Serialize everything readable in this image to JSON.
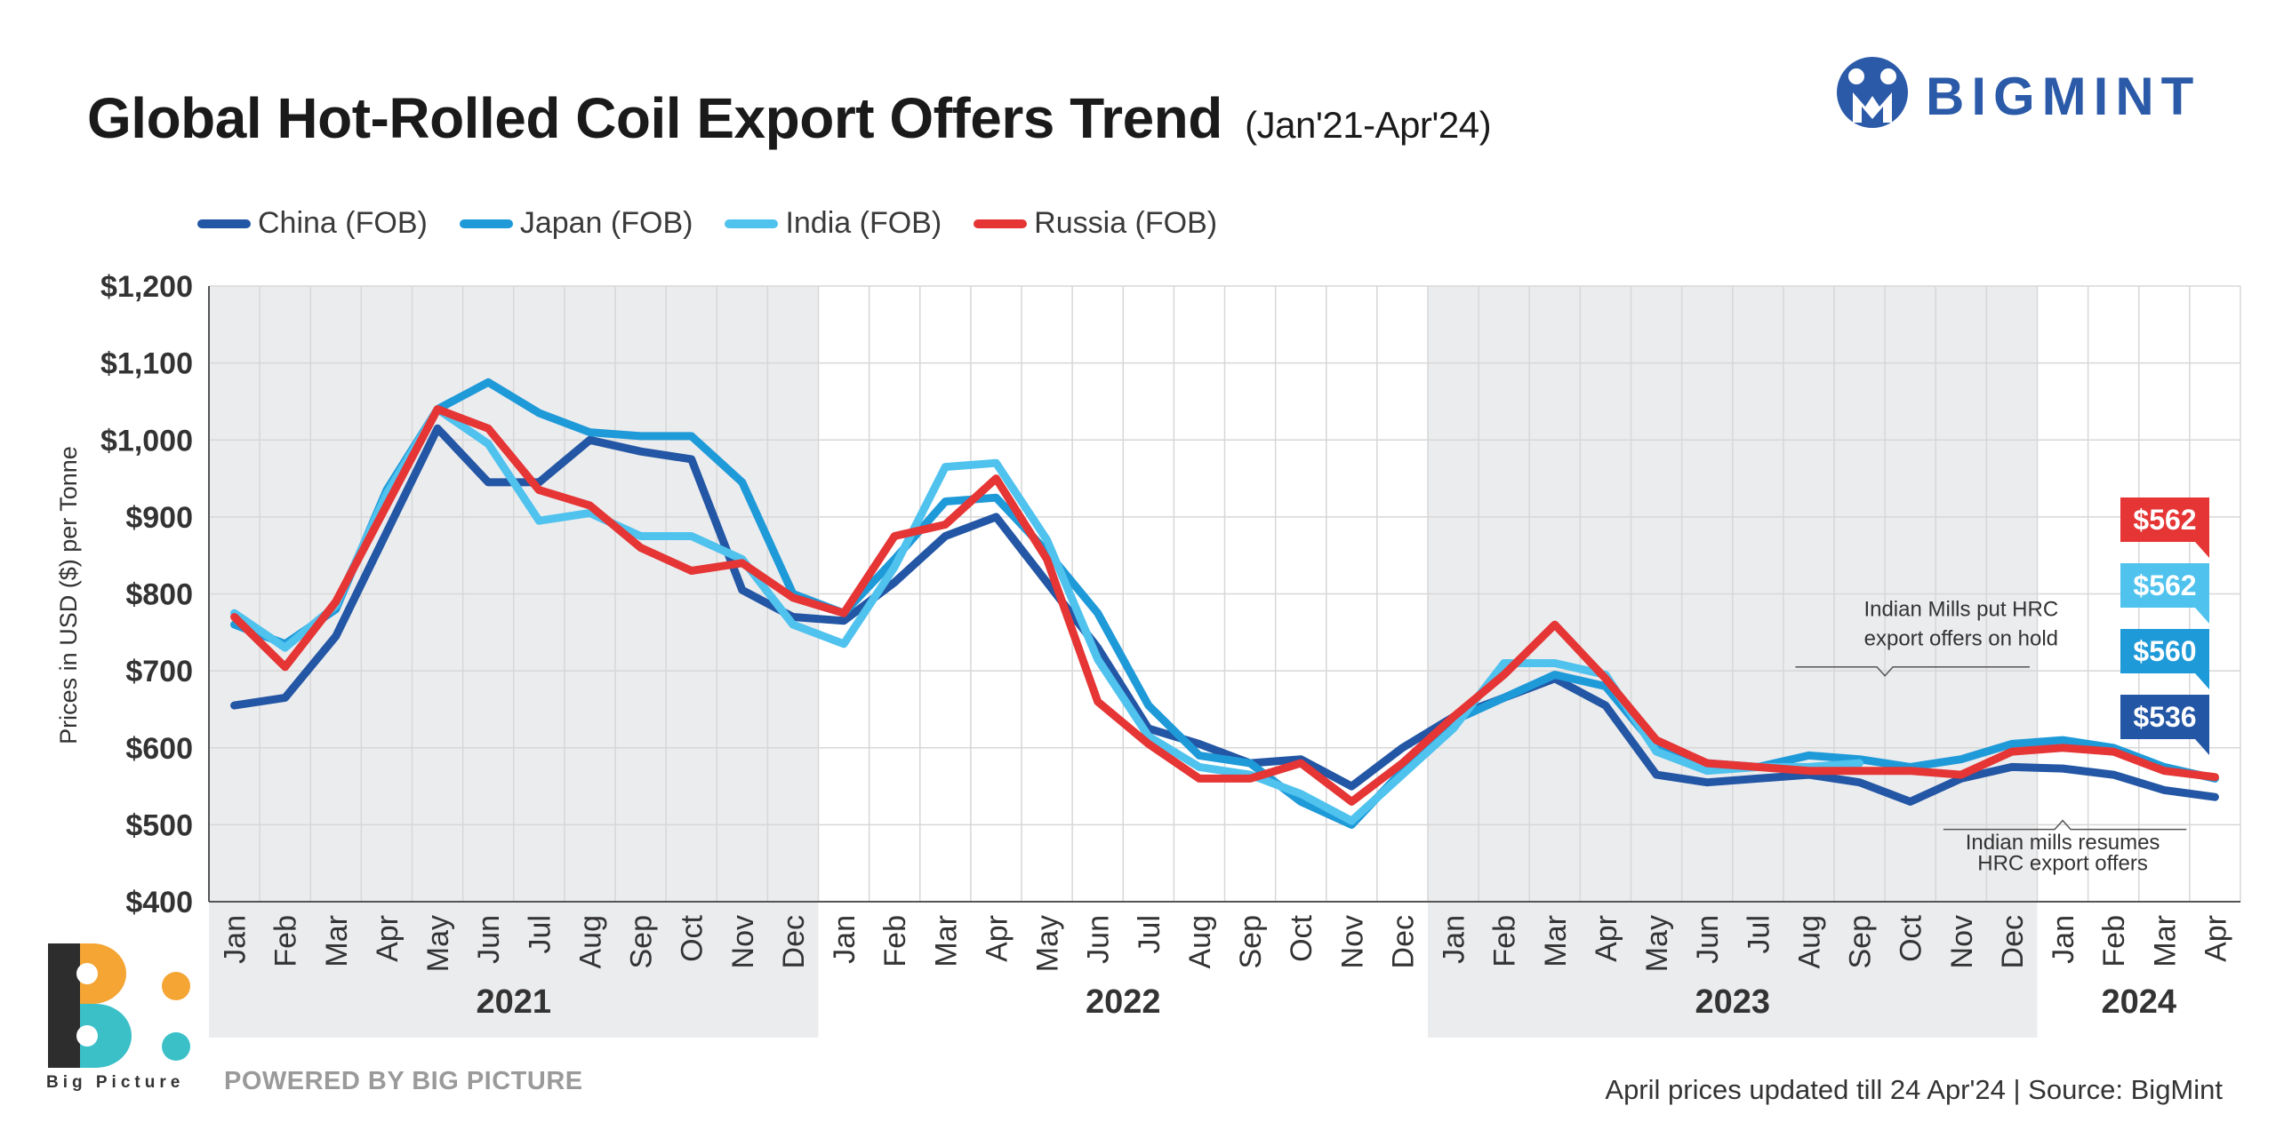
{
  "header": {
    "title": "Global Hot-Rolled Coil Export Offers Trend",
    "subtitle": "(Jan'21-Apr'24)"
  },
  "brand": {
    "name": "BIGMINT",
    "color": "#2b5aa8"
  },
  "footer": {
    "powered": "POWERED BY BIG PICTURE",
    "source": "April prices updated till 24 Apr'24 |  Source: BigMint",
    "logo_text": "Big Picture"
  },
  "colors": {
    "china": "#2356a4",
    "japan": "#1f9ad8",
    "india": "#4fc2ee",
    "russia": "#e53535",
    "band": "#ebecee"
  },
  "chart_data": {
    "type": "line",
    "title": "Global Hot-Rolled Coil Export Offers Trend",
    "subtitle": "(Jan'21-Apr'24)",
    "ylabel": "Prices in USD ($) per Tonne",
    "xlabel": "",
    "ylim": [
      400,
      1200
    ],
    "yticks": [
      "$400",
      "$500",
      "$600",
      "$700",
      "$800",
      "$900",
      "$1,000",
      "$1,100",
      "$1,200"
    ],
    "grid": true,
    "legend_position": "top-left",
    "years": [
      {
        "label": "2021",
        "months": 12,
        "shaded": true
      },
      {
        "label": "2022",
        "months": 12,
        "shaded": false
      },
      {
        "label": "2023",
        "months": 12,
        "shaded": true
      },
      {
        "label": "2024",
        "months": 4,
        "shaded": false
      }
    ],
    "categories": [
      "Jan",
      "Feb",
      "Mar",
      "Apr",
      "May",
      "Jun",
      "Jul",
      "Aug",
      "Sep",
      "Oct",
      "Nov",
      "Dec",
      "Jan",
      "Feb",
      "Mar",
      "Apr",
      "May",
      "Jun",
      "Jul",
      "Aug",
      "Sep",
      "Oct",
      "Nov",
      "Dec",
      "Jan",
      "Feb",
      "Mar",
      "Apr",
      "May",
      "Jun",
      "Jul",
      "Aug",
      "Sep",
      "Oct",
      "Nov",
      "Dec",
      "Jan",
      "Feb",
      "Mar",
      "Apr"
    ],
    "series": [
      {
        "name": "China (FOB)",
        "color": "#2356a4",
        "values": [
          655,
          665,
          745,
          880,
          1015,
          945,
          945,
          1000,
          985,
          975,
          805,
          770,
          765,
          815,
          875,
          900,
          815,
          730,
          625,
          605,
          580,
          585,
          550,
          600,
          640,
          665,
          690,
          655,
          565,
          555,
          560,
          565,
          555,
          530,
          560,
          575,
          573,
          565,
          545,
          536
        ]
      },
      {
        "name": "Japan (FOB)",
        "color": "#1f9ad8",
        "values": [
          760,
          735,
          780,
          935,
          1040,
          1075,
          1035,
          1010,
          1005,
          1005,
          945,
          800,
          775,
          845,
          920,
          925,
          855,
          775,
          655,
          590,
          580,
          530,
          500,
          570,
          635,
          665,
          695,
          680,
          600,
          580,
          575,
          590,
          585,
          575,
          585,
          605,
          610,
          600,
          575,
          560
        ]
      },
      {
        "name": "India (FOB)",
        "color": "#4fc2ee",
        "values": [
          775,
          730,
          785,
          930,
          1040,
          995,
          895,
          905,
          875,
          875,
          845,
          760,
          735,
          835,
          965,
          970,
          870,
          715,
          615,
          575,
          565,
          540,
          505,
          565,
          625,
          710,
          710,
          695,
          595,
          570,
          575,
          575,
          580,
          null,
          null,
          null,
          null,
          null,
          null,
          562
        ]
      },
      {
        "name": "Russia (FOB)",
        "color": "#e53535",
        "values": [
          770,
          705,
          790,
          915,
          1040,
          1015,
          935,
          915,
          860,
          830,
          840,
          795,
          775,
          875,
          890,
          950,
          845,
          660,
          605,
          560,
          560,
          580,
          530,
          580,
          640,
          695,
          760,
          690,
          610,
          580,
          575,
          570,
          570,
          570,
          565,
          595,
          600,
          595,
          570,
          562
        ]
      }
    ],
    "annotations": [
      {
        "text": "Indian Mills put HRC export offers on hold",
        "line1": "Indian Mills put HRC",
        "line2": "export offers on hold"
      },
      {
        "text": "Indian mills resumes HRC export offers",
        "line1": "Indian mills resumes",
        "line2": "HRC export offers"
      }
    ],
    "end_labels": [
      {
        "series": "Russia (FOB)",
        "label": "$562",
        "value": 562,
        "color": "#e53535"
      },
      {
        "series": "India (FOB)",
        "label": "$562",
        "value": 562,
        "color": "#4fc2ee"
      },
      {
        "series": "Japan (FOB)",
        "label": "$560",
        "value": 560,
        "color": "#1f9ad8"
      },
      {
        "series": "China (FOB)",
        "label": "$536",
        "value": 536,
        "color": "#2356a4"
      }
    ]
  }
}
